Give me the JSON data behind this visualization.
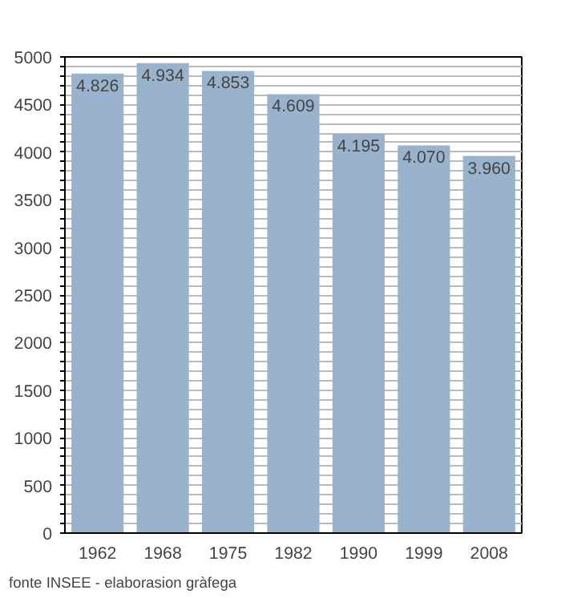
{
  "chart_data": {
    "type": "bar",
    "categories": [
      "1962",
      "1968",
      "1975",
      "1982",
      "1990",
      "1999",
      "2008"
    ],
    "values": [
      4826,
      4934,
      4853,
      4609,
      4195,
      4070,
      3960
    ],
    "value_labels": [
      "4.826",
      "4.934",
      "4.853",
      "4.609",
      "4.195",
      "4.070",
      "3.960"
    ],
    "color": "#9ab3cc",
    "ylim": [
      0,
      5000
    ],
    "yticks": [
      0,
      {
        "value": 100,
        "label": null
      },
      {
        "value": 200,
        "label": null
      },
      {
        "value": 300,
        "label": null
      },
      {
        "value": 400,
        "label": null
      },
      500,
      {
        "value": 600,
        "label": null
      },
      {
        "value": 700,
        "label": null
      },
      {
        "value": 800,
        "label": null
      },
      {
        "value": 900,
        "label": null
      },
      1000,
      {
        "value": 1100,
        "label": null
      },
      {
        "value": 1200,
        "label": null
      },
      {
        "value": 1300,
        "label": null
      },
      {
        "value": 1400,
        "label": null
      },
      1500,
      {
        "value": 1600,
        "label": null
      },
      {
        "value": 1700,
        "label": null
      },
      {
        "value": 1800,
        "label": null
      },
      {
        "value": 1900,
        "label": null
      },
      2000,
      {
        "value": 2100,
        "label": null
      },
      {
        "value": 2200,
        "label": null
      },
      {
        "value": 2300,
        "label": null
      },
      {
        "value": 2400,
        "label": null
      },
      2500,
      {
        "value": 2600,
        "label": null
      },
      {
        "value": 2700,
        "label": null
      },
      {
        "value": 2800,
        "label": null
      },
      {
        "value": 2900,
        "label": null
      },
      3000,
      {
        "value": 3100,
        "label": null
      },
      {
        "value": 3200,
        "label": null
      },
      {
        "value": 3300,
        "label": null
      },
      {
        "value": 3400,
        "label": null
      },
      3500,
      {
        "value": 3600,
        "label": null
      },
      {
        "value": 3700,
        "label": null
      },
      {
        "value": 3800,
        "label": null
      },
      {
        "value": 3900,
        "label": null
      },
      4000,
      {
        "value": 4100,
        "label": null
      },
      {
        "value": 4200,
        "label": null
      },
      {
        "value": 4300,
        "label": null
      },
      {
        "value": 4400,
        "label": null
      },
      4500,
      {
        "value": 4600,
        "label": null
      },
      {
        "value": 4700,
        "label": null
      },
      {
        "value": 4800,
        "label": null
      },
      {
        "value": 4900,
        "label": null
      },
      5000
    ],
    "grid": "y",
    "annotations": [
      "fonte INSEE - elaborasion gràfega"
    ]
  }
}
